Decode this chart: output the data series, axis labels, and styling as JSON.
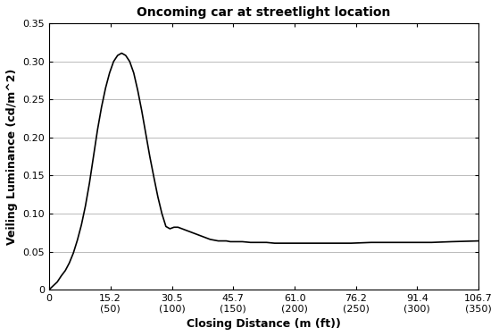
{
  "title": "Oncoming car at streetlight location",
  "xlabel": "Closing Distance (m (ft))",
  "ylabel": "Veiling Luminance (cd/m^2)",
  "xlim": [
    0,
    106.7
  ],
  "ylim": [
    0,
    0.35
  ],
  "xticks_m": [
    0,
    15.2,
    30.5,
    45.7,
    61.0,
    76.2,
    91.4,
    106.7
  ],
  "xtick_labels_line1": [
    "0",
    "15.2",
    "30.5",
    "45.7",
    "61.0",
    "76.2",
    "91.4",
    "106.7"
  ],
  "xtick_labels_line2": [
    "",
    "(50)",
    "(100)",
    "(150)",
    "(200)",
    "(250)",
    "(300)",
    "(350)"
  ],
  "yticks": [
    0,
    0.05,
    0.1,
    0.15,
    0.2,
    0.25,
    0.3,
    0.35
  ],
  "ytick_labels": [
    "0",
    "0.05",
    "0.10",
    "0.15",
    "0.20",
    "0.25",
    "0.30",
    "0.35"
  ],
  "line_color": "#000000",
  "background_color": "#ffffff",
  "x": [
    0,
    1.0,
    2.0,
    3.0,
    4.0,
    5.0,
    6.0,
    7.0,
    8.0,
    9.0,
    10.0,
    11.0,
    12.0,
    13.0,
    14.0,
    15.0,
    16.0,
    17.0,
    18.0,
    19.0,
    20.0,
    21.0,
    22.0,
    23.0,
    24.0,
    25.0,
    26.0,
    27.0,
    28.0,
    29.0,
    30.0,
    31.0,
    32.0,
    33.0,
    34.0,
    35.0,
    36.0,
    37.0,
    38.0,
    39.0,
    40.0,
    41.0,
    42.0,
    43.0,
    44.0,
    45.0,
    46.0,
    47.0,
    48.0,
    50.0,
    52.0,
    54.0,
    56.0,
    58.0,
    60.0,
    65.0,
    70.0,
    75.0,
    80.0,
    85.0,
    90.0,
    95.0,
    100.0,
    106.7
  ],
  "y": [
    0.0,
    0.005,
    0.01,
    0.018,
    0.025,
    0.035,
    0.048,
    0.065,
    0.085,
    0.11,
    0.14,
    0.175,
    0.21,
    0.24,
    0.265,
    0.285,
    0.3,
    0.308,
    0.311,
    0.308,
    0.3,
    0.285,
    0.262,
    0.235,
    0.205,
    0.175,
    0.148,
    0.122,
    0.1,
    0.083,
    0.08,
    0.082,
    0.082,
    0.08,
    0.078,
    0.076,
    0.074,
    0.072,
    0.07,
    0.068,
    0.066,
    0.065,
    0.064,
    0.064,
    0.064,
    0.063,
    0.063,
    0.063,
    0.063,
    0.062,
    0.062,
    0.062,
    0.061,
    0.061,
    0.061,
    0.061,
    0.061,
    0.061,
    0.062,
    0.062,
    0.062,
    0.062,
    0.063,
    0.064
  ]
}
